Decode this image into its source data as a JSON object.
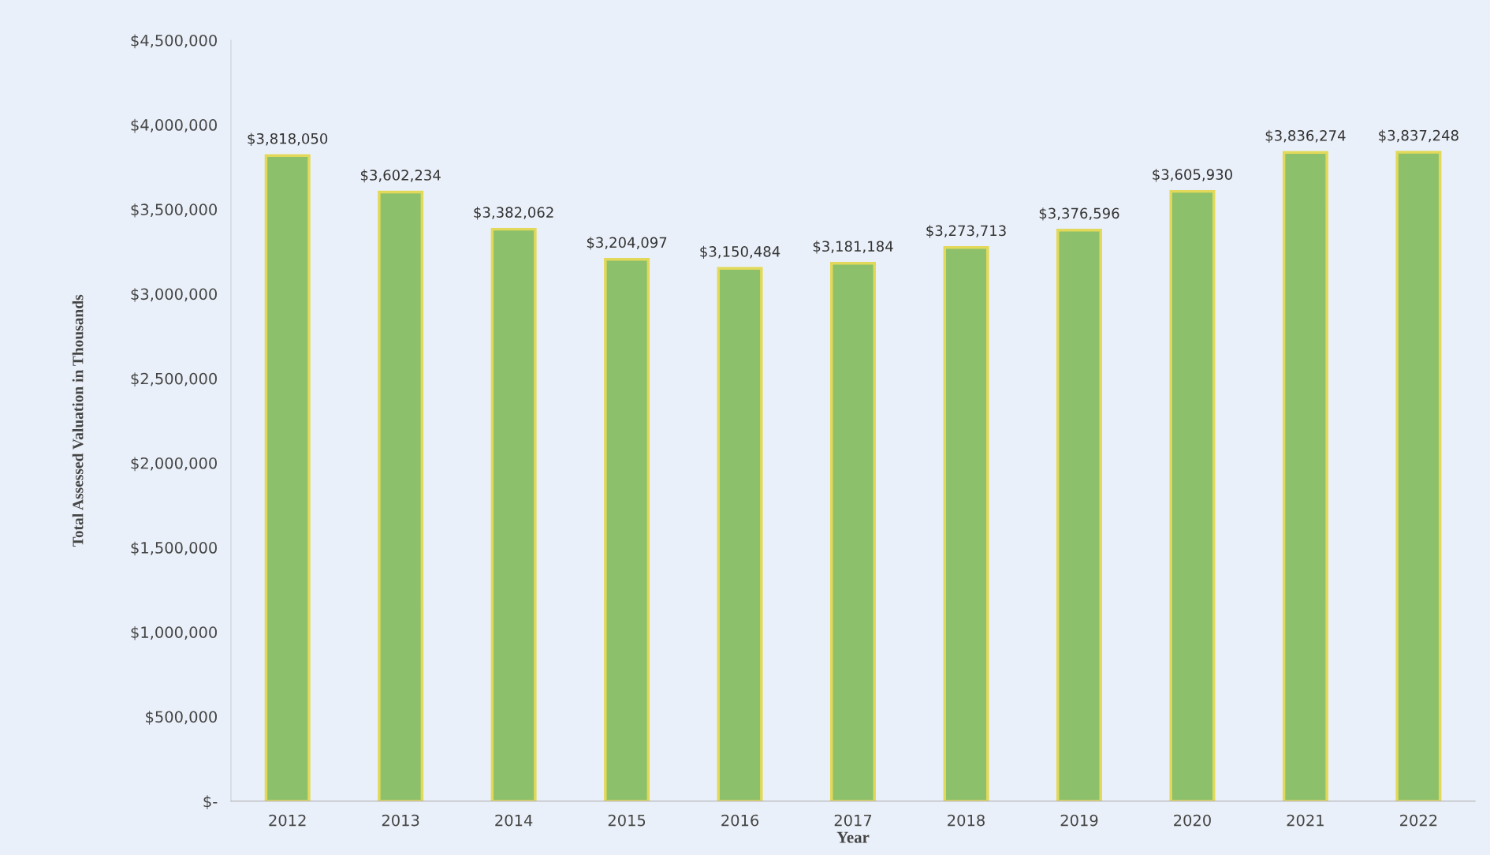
{
  "chart_data": {
    "type": "bar",
    "xlabel": "Year",
    "ylabel": "Total Assessed Valuation in Thousands",
    "categories": [
      "2012",
      "2013",
      "2014",
      "2015",
      "2016",
      "2017",
      "2018",
      "2019",
      "2020",
      "2021",
      "2022"
    ],
    "values": [
      3818050,
      3602234,
      3382062,
      3204097,
      3150484,
      3181184,
      3273713,
      3376596,
      3605930,
      3836274,
      3837248
    ],
    "value_labels": [
      "$3,818,050",
      "$3,602,234",
      "$3,382,062",
      "$3,204,097",
      "$3,150,484",
      "$3,181,184",
      "$3,273,713",
      "$3,376,596",
      "$3,605,930",
      "$3,836,274",
      "$3,837,248"
    ],
    "color": "#8cc06a",
    "ylim": [
      0,
      4500000
    ],
    "yticks": [
      {
        "value": 0,
        "label": "$-"
      },
      {
        "value": 500000,
        "label": "$500,000"
      },
      {
        "value": 1000000,
        "label": "$1,000,000"
      },
      {
        "value": 1500000,
        "label": "$1,500,000"
      },
      {
        "value": 2000000,
        "label": "$2,000,000"
      },
      {
        "value": 2500000,
        "label": "$2,500,000"
      },
      {
        "value": 3000000,
        "label": "$3,000,000"
      },
      {
        "value": 3500000,
        "label": "$3,500,000"
      },
      {
        "value": 4000000,
        "label": "$4,000,000"
      },
      {
        "value": 4500000,
        "label": "$4,500,000"
      }
    ],
    "grid": false,
    "legend": false
  }
}
